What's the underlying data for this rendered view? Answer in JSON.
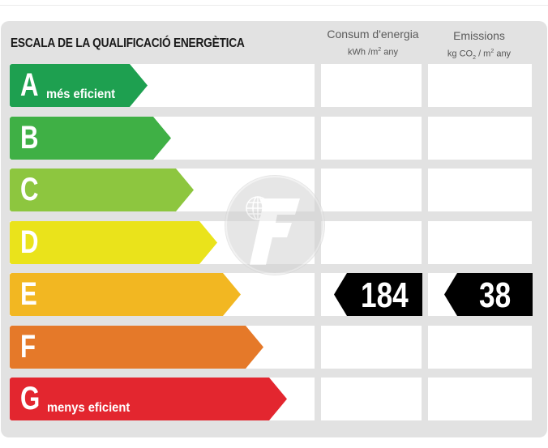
{
  "header": {
    "title": "ESCALA DE LA QUALIFICACIÓ ENERGÈTICA",
    "consumption": {
      "label": "Consum d'energia",
      "unit_pre": "kWh /m",
      "unit_sup": "2",
      "unit_post": " any"
    },
    "emissions": {
      "label": "Emissions",
      "unit_pre": "kg CO",
      "unit_sub": "2",
      "unit_mid": " / m",
      "unit_sup": "2",
      "unit_post": " any"
    }
  },
  "scale": [
    {
      "letter": "A",
      "label": "més eficient",
      "color": "#1ea050"
    },
    {
      "letter": "B",
      "label": "",
      "color": "#3fb045"
    },
    {
      "letter": "C",
      "label": "",
      "color": "#8dc63f"
    },
    {
      "letter": "D",
      "label": "",
      "color": "#eae31b"
    },
    {
      "letter": "E",
      "label": "",
      "color": "#f2b722"
    },
    {
      "letter": "F",
      "label": "",
      "color": "#e57929"
    },
    {
      "letter": "G",
      "label": "menys eficient",
      "color": "#e3262f"
    }
  ],
  "rating": {
    "class": "E",
    "consumption_value": "184",
    "emissions_value": "38"
  }
}
